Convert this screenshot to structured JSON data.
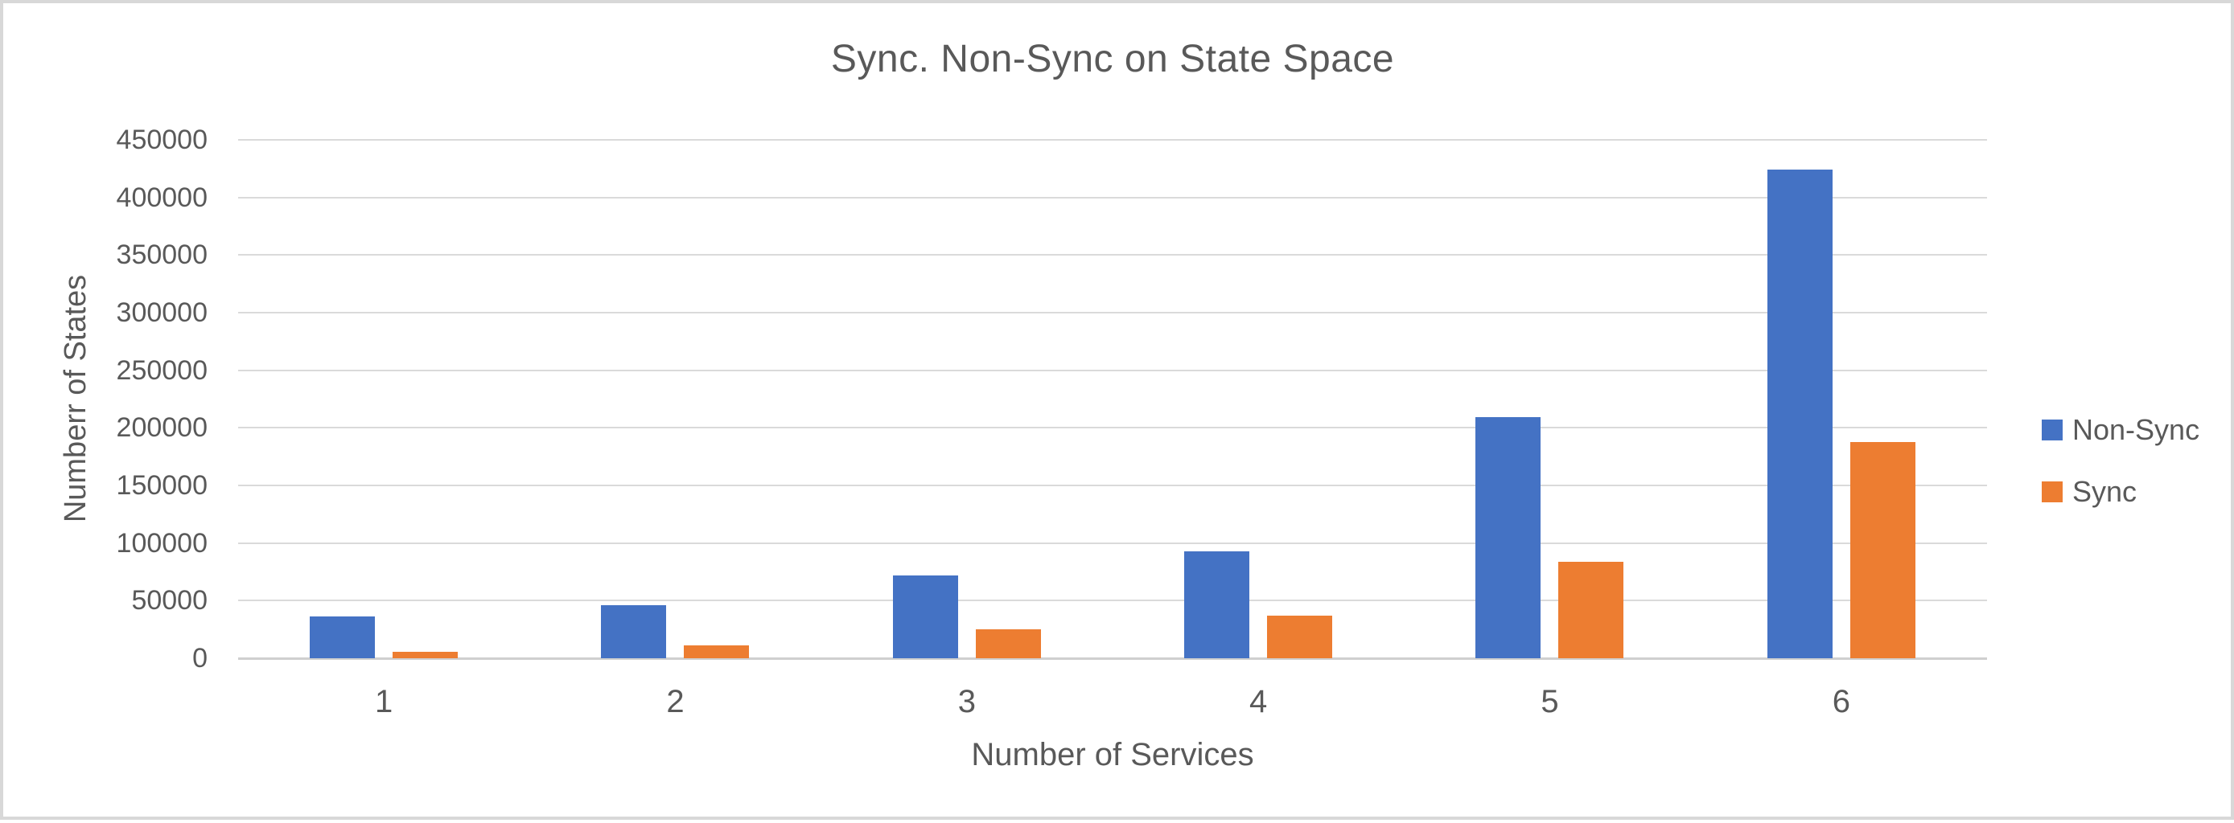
{
  "chart_data": {
    "type": "bar",
    "title": "Sync. Non-Sync on State Space",
    "xlabel": "Number of Services",
    "ylabel": "Numberr of States",
    "categories": [
      "1",
      "2",
      "3",
      "4",
      "5",
      "6"
    ],
    "series": [
      {
        "name": "Non-Sync",
        "color": "#4472C4",
        "values": [
          36000,
          46000,
          72000,
          93000,
          209000,
          424000
        ]
      },
      {
        "name": "Sync",
        "color": "#ED7D31",
        "values": [
          5500,
          11000,
          25000,
          37000,
          83500,
          187500
        ]
      }
    ],
    "ylim": [
      0,
      450000
    ],
    "ytick_interval": 50000,
    "ytick_labels": [
      "0",
      "50000",
      "100000",
      "150000",
      "200000",
      "250000",
      "300000",
      "350000",
      "400000",
      "450000"
    ],
    "grid": true,
    "legend_position": "right"
  },
  "colors": {
    "text": "#595959",
    "gridline": "#DADADA",
    "baseline": "#CFCFCF",
    "frame_border": "#D8D8D8",
    "background": "#FFFFFF"
  }
}
